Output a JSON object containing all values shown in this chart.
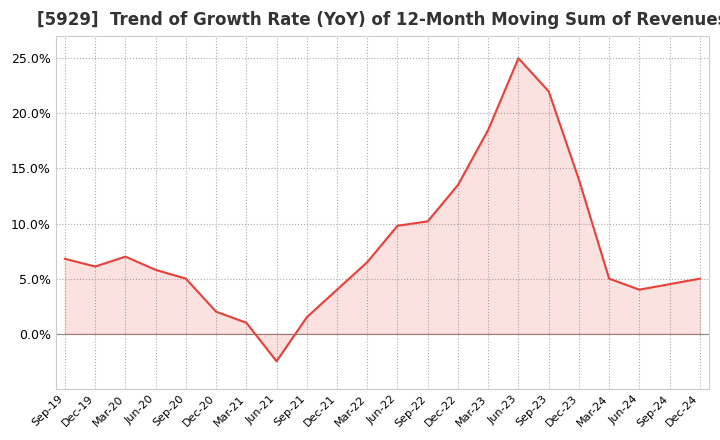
{
  "title": "[5929]  Trend of Growth Rate (YoY) of 12-Month Moving Sum of Revenues",
  "title_fontsize": 12,
  "line_color": "#e8413a",
  "fill_color": "#e8413a",
  "fill_alpha": 0.15,
  "background_color": "#ffffff",
  "grid_color": "#aaaaaa",
  "ylim": [
    -5.0,
    27.0
  ],
  "yticks": [
    0.0,
    5.0,
    10.0,
    15.0,
    20.0,
    25.0
  ],
  "x_labels": [
    "Sep-19",
    "Dec-19",
    "Mar-20",
    "Jun-20",
    "Sep-20",
    "Dec-20",
    "Mar-21",
    "Jun-21",
    "Sep-21",
    "Dec-21",
    "Mar-22",
    "Jun-22",
    "Sep-22",
    "Dec-22",
    "Mar-23",
    "Jun-23",
    "Sep-23",
    "Dec-23",
    "Mar-24",
    "Jun-24",
    "Sep-24",
    "Dec-24"
  ],
  "y_values": [
    6.8,
    6.1,
    7.0,
    5.8,
    5.0,
    2.0,
    1.0,
    -2.5,
    1.5,
    4.0,
    6.5,
    9.8,
    10.2,
    13.5,
    18.5,
    25.0,
    22.0,
    14.0,
    5.0,
    4.0,
    4.5,
    5.0
  ]
}
